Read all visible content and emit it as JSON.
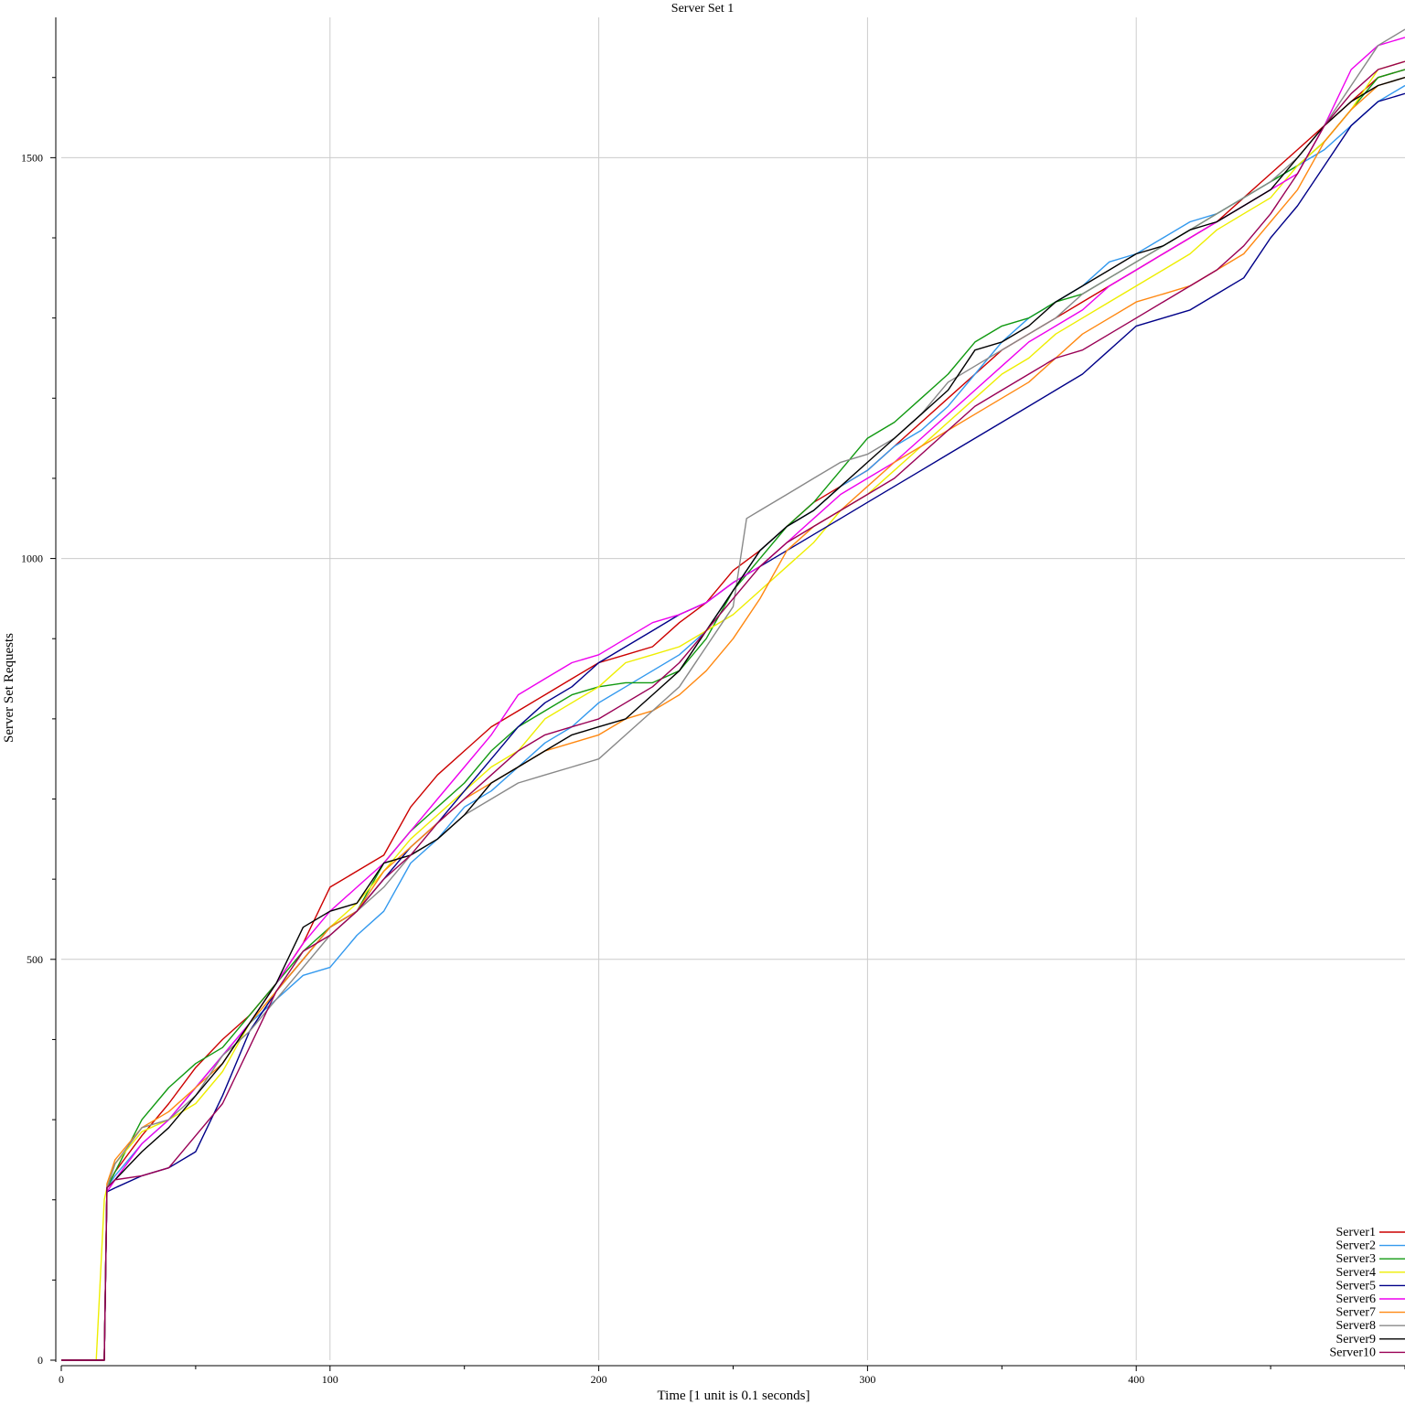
{
  "chart_data": {
    "type": "line",
    "title": "Server Set 1",
    "xlabel": "Time [1 unit is 0.1 seconds]",
    "ylabel": "Server Set Requests",
    "xlim": [
      0,
      500
    ],
    "ylim": [
      0,
      1675
    ],
    "xticks": [
      0,
      100,
      200,
      300,
      400
    ],
    "yticks": [
      0,
      500,
      1000,
      1500
    ],
    "grid": true,
    "legend_position": "bottom-right",
    "series": [
      {
        "name": "Server1",
        "color": "#cc0000",
        "x": [
          0,
          16,
          17,
          20,
          30,
          40,
          50,
          60,
          70,
          80,
          90,
          100,
          110,
          120,
          130,
          140,
          150,
          160,
          170,
          180,
          190,
          200,
          210,
          220,
          230,
          240,
          250,
          260,
          270,
          280,
          290,
          300,
          310,
          320,
          330,
          340,
          350,
          360,
          370,
          380,
          390,
          400,
          410,
          420,
          430,
          440,
          450,
          460,
          470,
          480,
          490,
          500
        ],
        "y": [
          0,
          0,
          215,
          235,
          280,
          320,
          365,
          400,
          430,
          470,
          520,
          590,
          610,
          630,
          690,
          730,
          760,
          790,
          810,
          830,
          850,
          870,
          880,
          890,
          920,
          945,
          985,
          1010,
          1040,
          1070,
          1090,
          1110,
          1140,
          1170,
          1200,
          1230,
          1260,
          1280,
          1300,
          1320,
          1340,
          1360,
          1380,
          1400,
          1420,
          1450,
          1480,
          1510,
          1540,
          1570,
          1600,
          1610
        ]
      },
      {
        "name": "Server2",
        "color": "#3399ee",
        "x": [
          0,
          16,
          17,
          20,
          30,
          40,
          50,
          60,
          70,
          80,
          90,
          100,
          110,
          120,
          130,
          140,
          150,
          160,
          170,
          180,
          190,
          200,
          210,
          220,
          230,
          240,
          250,
          260,
          270,
          280,
          290,
          300,
          310,
          320,
          330,
          340,
          350,
          360,
          370,
          380,
          390,
          400,
          410,
          420,
          430,
          440,
          450,
          460,
          470,
          480,
          490,
          500
        ],
        "y": [
          0,
          0,
          215,
          230,
          270,
          300,
          340,
          380,
          420,
          450,
          480,
          490,
          530,
          560,
          620,
          650,
          690,
          710,
          740,
          770,
          790,
          820,
          840,
          860,
          880,
          910,
          960,
          1010,
          1040,
          1060,
          1090,
          1110,
          1140,
          1160,
          1190,
          1230,
          1270,
          1300,
          1320,
          1340,
          1370,
          1380,
          1400,
          1420,
          1430,
          1450,
          1470,
          1490,
          1510,
          1540,
          1570,
          1590
        ]
      },
      {
        "name": "Server3",
        "color": "#119911",
        "x": [
          0,
          16,
          17,
          20,
          30,
          40,
          50,
          60,
          70,
          80,
          90,
          100,
          110,
          120,
          130,
          140,
          150,
          160,
          170,
          180,
          190,
          200,
          210,
          220,
          230,
          240,
          250,
          260,
          270,
          280,
          290,
          300,
          310,
          320,
          330,
          340,
          350,
          360,
          370,
          380,
          390,
          400,
          410,
          420,
          430,
          440,
          450,
          460,
          470,
          480,
          490,
          500
        ],
        "y": [
          0,
          0,
          215,
          235,
          300,
          340,
          370,
          390,
          430,
          470,
          510,
          540,
          560,
          620,
          660,
          690,
          720,
          760,
          790,
          810,
          830,
          840,
          845,
          845,
          860,
          900,
          960,
          1000,
          1040,
          1070,
          1110,
          1150,
          1170,
          1200,
          1230,
          1270,
          1290,
          1300,
          1320,
          1330,
          1350,
          1370,
          1390,
          1410,
          1430,
          1450,
          1470,
          1490,
          1520,
          1560,
          1600,
          1610
        ]
      },
      {
        "name": "Server4",
        "color": "#eeee00",
        "x": [
          0,
          13,
          16,
          17,
          20,
          30,
          40,
          50,
          60,
          70,
          80,
          90,
          100,
          110,
          120,
          130,
          140,
          150,
          160,
          170,
          180,
          190,
          200,
          210,
          220,
          230,
          240,
          250,
          260,
          270,
          280,
          290,
          300,
          310,
          320,
          330,
          340,
          350,
          360,
          370,
          380,
          390,
          400,
          410,
          420,
          430,
          440,
          450,
          460,
          470,
          480,
          490,
          500
        ],
        "y": [
          0,
          0,
          200,
          215,
          245,
          285,
          300,
          320,
          360,
          420,
          460,
          500,
          540,
          570,
          610,
          650,
          680,
          710,
          740,
          760,
          800,
          820,
          840,
          870,
          880,
          890,
          910,
          930,
          960,
          990,
          1020,
          1060,
          1080,
          1110,
          1140,
          1170,
          1200,
          1230,
          1250,
          1280,
          1300,
          1320,
          1340,
          1360,
          1380,
          1410,
          1430,
          1450,
          1490,
          1520,
          1560,
          1610,
          1620
        ]
      },
      {
        "name": "Server5",
        "color": "#000088",
        "x": [
          0,
          16,
          17,
          20,
          30,
          40,
          50,
          60,
          70,
          80,
          90,
          100,
          110,
          120,
          130,
          140,
          150,
          160,
          170,
          180,
          190,
          200,
          210,
          220,
          230,
          240,
          250,
          260,
          270,
          280,
          290,
          300,
          310,
          320,
          330,
          340,
          350,
          360,
          370,
          380,
          390,
          400,
          410,
          420,
          430,
          440,
          450,
          460,
          470,
          480,
          490,
          500
        ],
        "y": [
          0,
          0,
          210,
          215,
          230,
          240,
          260,
          330,
          410,
          460,
          500,
          540,
          560,
          600,
          640,
          670,
          710,
          750,
          790,
          820,
          840,
          870,
          890,
          910,
          930,
          945,
          970,
          990,
          1010,
          1030,
          1050,
          1070,
          1090,
          1110,
          1130,
          1150,
          1170,
          1190,
          1210,
          1230,
          1260,
          1290,
          1300,
          1310,
          1330,
          1350,
          1400,
          1440,
          1490,
          1540,
          1570,
          1580
        ]
      },
      {
        "name": "Server6",
        "color": "#ee00ee",
        "x": [
          0,
          16,
          17,
          20,
          30,
          40,
          50,
          60,
          70,
          80,
          90,
          100,
          110,
          120,
          130,
          140,
          150,
          160,
          170,
          180,
          190,
          200,
          210,
          220,
          230,
          240,
          250,
          260,
          270,
          280,
          290,
          300,
          310,
          320,
          330,
          340,
          350,
          360,
          370,
          380,
          390,
          400,
          410,
          420,
          430,
          440,
          450,
          460,
          470,
          480,
          490,
          500
        ],
        "y": [
          0,
          0,
          210,
          225,
          270,
          300,
          340,
          380,
          420,
          470,
          520,
          560,
          590,
          620,
          660,
          700,
          740,
          780,
          830,
          850,
          870,
          880,
          900,
          920,
          930,
          945,
          970,
          990,
          1020,
          1050,
          1080,
          1100,
          1120,
          1150,
          1180,
          1210,
          1240,
          1270,
          1290,
          1310,
          1340,
          1360,
          1380,
          1400,
          1420,
          1440,
          1460,
          1480,
          1540,
          1610,
          1640,
          1650
        ]
      },
      {
        "name": "Server7",
        "color": "#ff8811",
        "x": [
          0,
          16,
          17,
          20,
          30,
          40,
          50,
          60,
          70,
          80,
          90,
          100,
          110,
          120,
          130,
          140,
          150,
          160,
          170,
          180,
          190,
          200,
          210,
          220,
          230,
          240,
          250,
          260,
          270,
          280,
          290,
          300,
          310,
          320,
          330,
          340,
          350,
          360,
          370,
          380,
          390,
          400,
          410,
          420,
          430,
          440,
          450,
          460,
          470,
          480,
          490,
          500
        ],
        "y": [
          0,
          0,
          220,
          250,
          290,
          310,
          340,
          370,
          420,
          460,
          500,
          540,
          560,
          610,
          640,
          670,
          700,
          720,
          740,
          760,
          770,
          780,
          800,
          810,
          830,
          860,
          900,
          950,
          1010,
          1040,
          1060,
          1090,
          1120,
          1140,
          1160,
          1180,
          1200,
          1220,
          1250,
          1280,
          1300,
          1320,
          1330,
          1340,
          1360,
          1380,
          1420,
          1460,
          1520,
          1560,
          1590,
          1600
        ]
      },
      {
        "name": "Server8",
        "color": "#888888",
        "x": [
          0,
          16,
          17,
          20,
          30,
          40,
          50,
          60,
          70,
          80,
          90,
          100,
          110,
          120,
          130,
          140,
          150,
          160,
          170,
          180,
          190,
          200,
          210,
          220,
          230,
          240,
          250,
          255,
          260,
          270,
          280,
          290,
          300,
          310,
          320,
          330,
          340,
          350,
          360,
          370,
          380,
          390,
          400,
          410,
          420,
          430,
          440,
          450,
          460,
          470,
          480,
          490,
          500
        ],
        "y": [
          0,
          0,
          215,
          245,
          290,
          300,
          330,
          380,
          410,
          450,
          490,
          530,
          560,
          590,
          630,
          650,
          680,
          700,
          720,
          730,
          740,
          750,
          780,
          810,
          840,
          890,
          940,
          1050,
          1060,
          1080,
          1100,
          1120,
          1130,
          1150,
          1180,
          1220,
          1240,
          1260,
          1280,
          1300,
          1330,
          1350,
          1370,
          1390,
          1410,
          1430,
          1450,
          1470,
          1500,
          1540,
          1590,
          1640,
          1660
        ]
      },
      {
        "name": "Server9",
        "color": "#000000",
        "x": [
          0,
          16,
          17,
          20,
          30,
          40,
          50,
          60,
          70,
          80,
          90,
          100,
          110,
          120,
          130,
          140,
          150,
          160,
          170,
          180,
          190,
          200,
          210,
          220,
          230,
          240,
          250,
          260,
          270,
          280,
          290,
          300,
          310,
          320,
          330,
          340,
          350,
          360,
          370,
          380,
          390,
          400,
          410,
          420,
          430,
          440,
          450,
          460,
          470,
          480,
          490,
          500
        ],
        "y": [
          0,
          0,
          215,
          225,
          260,
          290,
          330,
          370,
          420,
          470,
          540,
          560,
          570,
          620,
          630,
          650,
          680,
          720,
          740,
          760,
          780,
          790,
          800,
          830,
          860,
          910,
          960,
          1010,
          1040,
          1060,
          1090,
          1120,
          1150,
          1180,
          1210,
          1260,
          1270,
          1290,
          1320,
          1340,
          1360,
          1380,
          1390,
          1410,
          1420,
          1440,
          1460,
          1500,
          1540,
          1570,
          1590,
          1600
        ]
      },
      {
        "name": "Server10",
        "color": "#990055",
        "x": [
          0,
          16,
          17,
          20,
          30,
          40,
          50,
          60,
          70,
          80,
          90,
          100,
          110,
          120,
          130,
          140,
          150,
          160,
          170,
          180,
          190,
          200,
          210,
          220,
          230,
          240,
          250,
          260,
          270,
          280,
          290,
          300,
          310,
          320,
          330,
          340,
          350,
          360,
          370,
          380,
          390,
          400,
          410,
          420,
          430,
          440,
          450,
          460,
          470,
          480,
          490,
          500
        ],
        "y": [
          0,
          0,
          215,
          225,
          230,
          240,
          280,
          320,
          390,
          460,
          510,
          530,
          560,
          600,
          630,
          670,
          700,
          730,
          760,
          780,
          790,
          800,
          820,
          840,
          870,
          910,
          950,
          990,
          1020,
          1040,
          1060,
          1080,
          1100,
          1130,
          1160,
          1190,
          1210,
          1230,
          1250,
          1260,
          1280,
          1300,
          1320,
          1340,
          1360,
          1390,
          1430,
          1480,
          1540,
          1580,
          1610,
          1620
        ]
      }
    ]
  }
}
